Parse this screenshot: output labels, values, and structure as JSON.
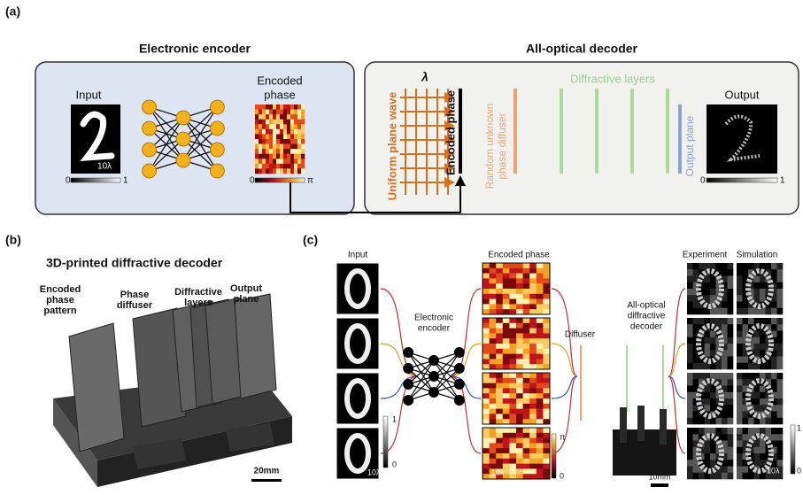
{
  "panel_a": {
    "label": "(a)",
    "encoder": {
      "title": "Electronic encoder",
      "input_label": "Input",
      "input_scale": "10λ",
      "input_min": "0",
      "input_max": "1",
      "phase_label_line1": "Encoded",
      "phase_label_line2": "phase",
      "phase_min": "0",
      "phase_max": "π"
    },
    "decoder": {
      "title": "All-optical decoder",
      "wavelength": "λ",
      "plane_wave": "Uniform plane wave",
      "encoded_phase": "Encoded phase",
      "diffuser_line1": "Random unknown",
      "diffuser_line2": "phase diffuser",
      "layers": "Diffractive layers",
      "output_plane": "Output plane",
      "output_label": "Output",
      "output_min": "0",
      "output_max": "1"
    }
  },
  "panel_b": {
    "label": "(b)",
    "title": "3D-printed diffractive decoder",
    "parts": [
      {
        "line1": "Encoded",
        "line2": "phase",
        "line3": "pattern"
      },
      {
        "line1": "Phase",
        "line2": "diffuser"
      },
      {
        "line1": "Diffractive",
        "line2": "layers"
      },
      {
        "line1": "Output",
        "line2": "plane"
      }
    ],
    "scale": "20mm"
  },
  "panel_c": {
    "label": "(c)",
    "input_label": "Input",
    "phase_label": "Encoded phase",
    "experiment_label": "Experiment",
    "simulation_label": "Simulation",
    "encoder_line1": "Electronic",
    "encoder_line2": "encoder",
    "diffuser": "Diffuser",
    "decoder_line1": "All-optical",
    "decoder_line2": "diffractive",
    "decoder_line3": "decoder",
    "input_scale": "10λ",
    "input_max": "1",
    "input_min": "0",
    "phase_scale": "10λ",
    "phase_max": "π",
    "phase_min": "0",
    "device_scale": "10mm",
    "output_scale": "10λ",
    "output_max": "1",
    "output_min": "0"
  }
}
